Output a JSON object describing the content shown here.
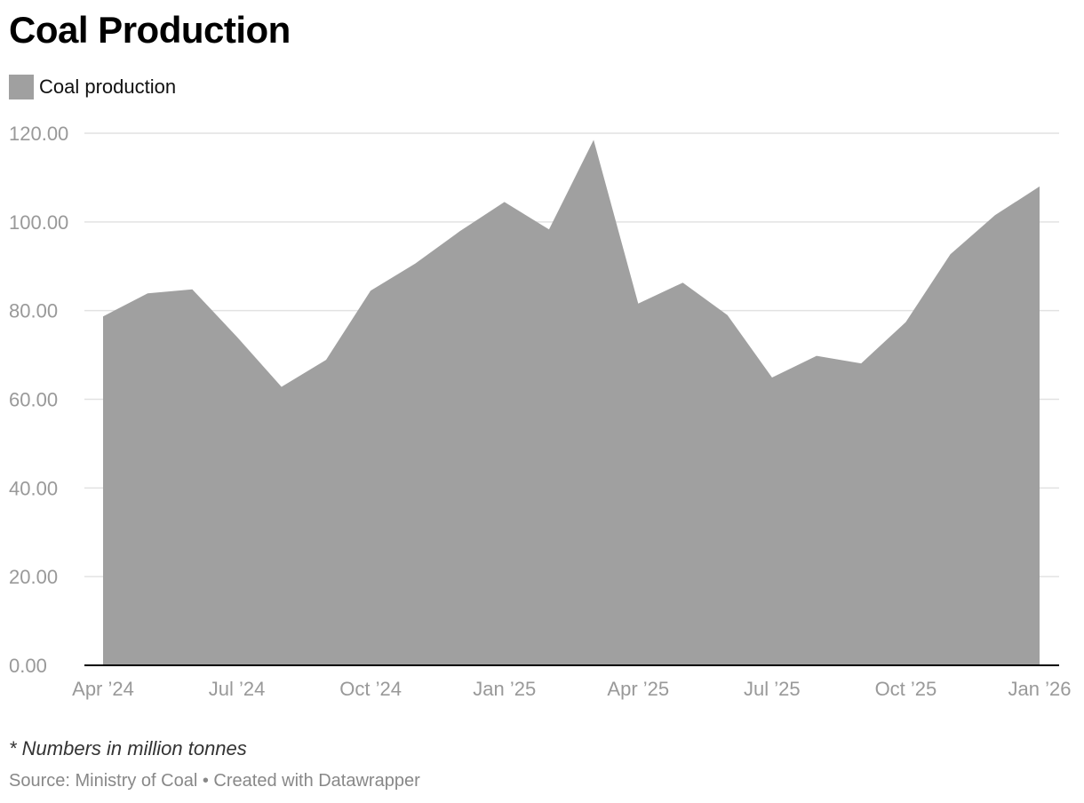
{
  "title": "Coal Production",
  "note": "* Numbers in million tonnes",
  "source": "Source: Ministry of Coal • Created with Datawrapper",
  "colors": {
    "area": "#a0a0a0",
    "grid": "#e2e2e2",
    "axis": "#000000",
    "tick_label": "#999999"
  },
  "chart_data": {
    "type": "area",
    "title": "Coal Production",
    "xlabel": "",
    "ylabel": "",
    "ylim": [
      0,
      120
    ],
    "y_ticks": [
      "0.00",
      "20.00",
      "40.00",
      "60.00",
      "80.00",
      "100.00",
      "120.00"
    ],
    "x_tick_labels": [
      "Apr ’24",
      "Jul ’24",
      "Oct ’24",
      "Jan ’25",
      "Apr ’25",
      "Jul ’25",
      "Oct ’25",
      "Jan ’26"
    ],
    "grid": true,
    "legend": "top-left",
    "categories": [
      "Apr 2024",
      "May 2024",
      "Jun 2024",
      "Jul 2024",
      "Aug 2024",
      "Sep 2024",
      "Oct 2024",
      "Nov 2024",
      "Dec 2024",
      "Jan 2025",
      "Feb 2025",
      "Mar 2025",
      "Apr 2025",
      "May 2025",
      "Jun 2025",
      "Jul 2025",
      "Aug 2025",
      "Sep 2025",
      "Oct 2025",
      "Nov 2025",
      "Dec 2025",
      "Jan 2026"
    ],
    "series": [
      {
        "name": "Coal production",
        "values": [
          78.7,
          83.9,
          84.8,
          74.1,
          62.8,
          68.9,
          84.5,
          90.6,
          97.9,
          104.5,
          98.3,
          118.5,
          81.6,
          86.3,
          79.0,
          64.9,
          69.8,
          68.1,
          77.4,
          92.7,
          101.5,
          108.0
        ]
      }
    ]
  }
}
